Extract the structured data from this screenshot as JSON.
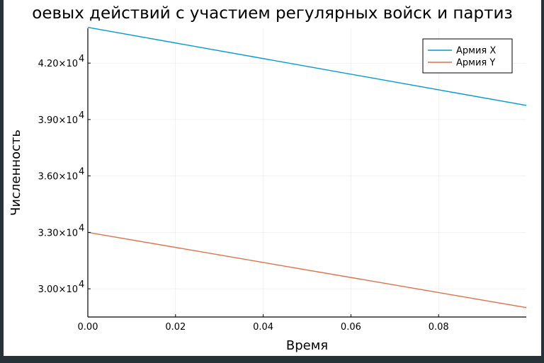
{
  "chart_data": {
    "type": "line",
    "title": "оевых действий с участием регулярных войск и партиз",
    "xlabel": "Время",
    "ylabel": "Численность",
    "xlim": [
      0,
      0.1
    ],
    "ylim": [
      28500,
      43850
    ],
    "x_ticks": [
      0,
      0.02,
      0.04,
      0.06,
      0.08
    ],
    "x_tick_labels": [
      "0.00",
      "0.02",
      "0.04",
      "0.06",
      "0.08"
    ],
    "y_ticks": [
      30000,
      33000,
      36000,
      39000,
      42000
    ],
    "y_tick_mantissas": [
      "3.00×10",
      "3.30×10",
      "3.60×10",
      "3.90×10",
      "4.20×10"
    ],
    "y_tick_exponent": "4",
    "grid": true,
    "legend_position": "top-right",
    "series": [
      {
        "name": "Армия X",
        "color": "#0099d9",
        "x": [
          0,
          0.1
        ],
        "y": [
          43900,
          39750
        ]
      },
      {
        "name": "Армия Y",
        "color": "#e26f46",
        "x": [
          0,
          0.1
        ],
        "y": [
          33000,
          29000
        ]
      }
    ]
  }
}
